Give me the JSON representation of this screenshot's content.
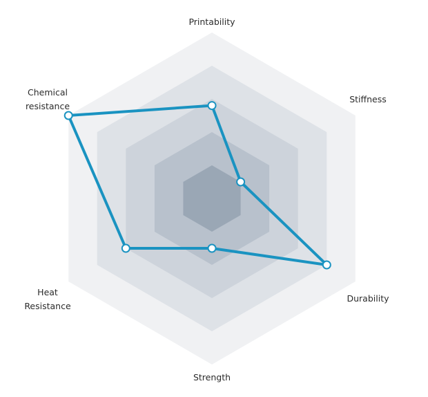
{
  "chart_data": {
    "type": "radar",
    "axes": [
      {
        "label_lines": [
          "Printability"
        ]
      },
      {
        "label_lines": [
          "Stiffness"
        ]
      },
      {
        "label_lines": [
          "Durability"
        ]
      },
      {
        "label_lines": [
          "Strength"
        ]
      },
      {
        "label_lines": [
          "Heat",
          "Resistance"
        ]
      },
      {
        "label_lines": [
          "Chemical",
          "resistance"
        ]
      }
    ],
    "rings": 5,
    "range": [
      0,
      5
    ],
    "series": [
      {
        "values": [
          2.8,
          1.0,
          4.0,
          1.5,
          3.0,
          5.0
        ],
        "color": "#1a93c1"
      }
    ],
    "ring_colors": [
      "#f0f1f3",
      "#dee2e7",
      "#cdd3db",
      "#b8c1cc",
      "#9aa7b5"
    ],
    "legend": "none"
  }
}
